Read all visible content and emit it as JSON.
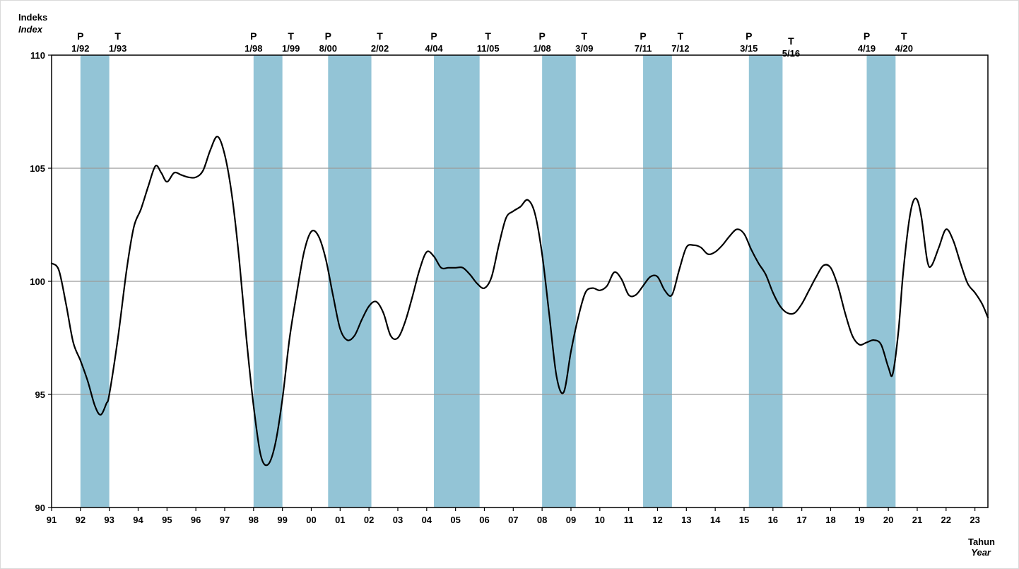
{
  "chart_data": {
    "type": "line",
    "ylabel": "Indeks",
    "ylabel_en": "Index",
    "xlabel": "Tahun",
    "xlabel_en": "Year",
    "ylim": [
      90,
      110
    ],
    "yticks": [
      90,
      95,
      100,
      105,
      110
    ],
    "grid": true,
    "x_tick_labels": [
      "91",
      "92",
      "93",
      "94",
      "95",
      "96",
      "97",
      "98",
      "99",
      "00",
      "01",
      "02",
      "03",
      "04",
      "05",
      "06",
      "07",
      "08",
      "09",
      "10",
      "11",
      "12",
      "13",
      "14",
      "15",
      "16",
      "17",
      "18",
      "19",
      "20",
      "21",
      "22",
      "23"
    ],
    "x_start_year": 1991,
    "shaded_periods": [
      {
        "peak": "1/92",
        "trough": "1/93",
        "peak_label": "P",
        "trough_label": "T"
      },
      {
        "peak": "1/98",
        "trough": "1/99",
        "peak_label": "P",
        "trough_label": "T"
      },
      {
        "peak": "8/00",
        "trough": "2/02",
        "peak_label": "P",
        "trough_label": "T"
      },
      {
        "peak": "4/04",
        "trough": "11/05",
        "peak_label": "P",
        "trough_label": "T"
      },
      {
        "peak": "1/08",
        "trough": "3/09",
        "peak_label": "P",
        "trough_label": "T"
      },
      {
        "peak": "7/11",
        "trough": "7/12",
        "peak_label": "P",
        "trough_label": "T"
      },
      {
        "peak": "3/15",
        "trough": "5/16",
        "peak_label": "P",
        "trough_label": "T"
      },
      {
        "peak": "4/19",
        "trough": "4/20",
        "peak_label": "P",
        "trough_label": "T"
      }
    ],
    "series": [
      {
        "points": [
          [
            1991.0,
            100.8
          ],
          [
            1991.25,
            100.5
          ],
          [
            1991.5,
            99.0
          ],
          [
            1991.75,
            97.3
          ],
          [
            1992.0,
            96.5
          ],
          [
            1992.25,
            95.6
          ],
          [
            1992.5,
            94.5
          ],
          [
            1992.7,
            94.1
          ],
          [
            1992.9,
            94.6
          ],
          [
            1993.0,
            95.0
          ],
          [
            1993.3,
            97.5
          ],
          [
            1993.6,
            100.5
          ],
          [
            1993.85,
            102.4
          ],
          [
            1994.1,
            103.2
          ],
          [
            1994.35,
            104.2
          ],
          [
            1994.6,
            105.1
          ],
          [
            1994.8,
            104.8
          ],
          [
            1995.0,
            104.4
          ],
          [
            1995.25,
            104.8
          ],
          [
            1995.5,
            104.7
          ],
          [
            1995.75,
            104.6
          ],
          [
            1996.0,
            104.6
          ],
          [
            1996.25,
            104.9
          ],
          [
            1996.5,
            105.8
          ],
          [
            1996.75,
            106.4
          ],
          [
            1997.0,
            105.6
          ],
          [
            1997.25,
            103.8
          ],
          [
            1997.5,
            101.0
          ],
          [
            1997.75,
            97.5
          ],
          [
            1998.0,
            94.5
          ],
          [
            1998.25,
            92.3
          ],
          [
            1998.5,
            91.9
          ],
          [
            1998.75,
            92.8
          ],
          [
            1999.0,
            94.8
          ],
          [
            1999.25,
            97.5
          ],
          [
            1999.5,
            99.5
          ],
          [
            1999.75,
            101.3
          ],
          [
            2000.0,
            102.2
          ],
          [
            2000.25,
            102.0
          ],
          [
            2000.5,
            101.0
          ],
          [
            2000.75,
            99.4
          ],
          [
            2001.0,
            97.9
          ],
          [
            2001.25,
            97.4
          ],
          [
            2001.5,
            97.6
          ],
          [
            2001.75,
            98.3
          ],
          [
            2002.0,
            98.9
          ],
          [
            2002.25,
            99.1
          ],
          [
            2002.5,
            98.6
          ],
          [
            2002.75,
            97.6
          ],
          [
            2003.0,
            97.5
          ],
          [
            2003.25,
            98.2
          ],
          [
            2003.5,
            99.3
          ],
          [
            2003.75,
            100.5
          ],
          [
            2004.0,
            101.3
          ],
          [
            2004.25,
            101.1
          ],
          [
            2004.5,
            100.6
          ],
          [
            2004.75,
            100.6
          ],
          [
            2005.0,
            100.6
          ],
          [
            2005.25,
            100.6
          ],
          [
            2005.5,
            100.3
          ],
          [
            2005.75,
            99.9
          ],
          [
            2006.0,
            99.7
          ],
          [
            2006.25,
            100.2
          ],
          [
            2006.5,
            101.6
          ],
          [
            2006.75,
            102.8
          ],
          [
            2007.0,
            103.1
          ],
          [
            2007.25,
            103.3
          ],
          [
            2007.5,
            103.6
          ],
          [
            2007.75,
            103.0
          ],
          [
            2008.0,
            101.2
          ],
          [
            2008.25,
            98.5
          ],
          [
            2008.5,
            95.8
          ],
          [
            2008.75,
            95.1
          ],
          [
            2009.0,
            96.9
          ],
          [
            2009.25,
            98.4
          ],
          [
            2009.5,
            99.5
          ],
          [
            2009.75,
            99.7
          ],
          [
            2010.0,
            99.6
          ],
          [
            2010.25,
            99.8
          ],
          [
            2010.5,
            100.4
          ],
          [
            2010.75,
            100.1
          ],
          [
            2011.0,
            99.4
          ],
          [
            2011.25,
            99.4
          ],
          [
            2011.5,
            99.8
          ],
          [
            2011.75,
            100.2
          ],
          [
            2012.0,
            100.2
          ],
          [
            2012.25,
            99.6
          ],
          [
            2012.5,
            99.4
          ],
          [
            2012.75,
            100.5
          ],
          [
            2013.0,
            101.5
          ],
          [
            2013.25,
            101.6
          ],
          [
            2013.5,
            101.5
          ],
          [
            2013.75,
            101.2
          ],
          [
            2014.0,
            101.3
          ],
          [
            2014.25,
            101.6
          ],
          [
            2014.5,
            102.0
          ],
          [
            2014.75,
            102.3
          ],
          [
            2015.0,
            102.1
          ],
          [
            2015.25,
            101.4
          ],
          [
            2015.5,
            100.8
          ],
          [
            2015.75,
            100.3
          ],
          [
            2016.0,
            99.5
          ],
          [
            2016.25,
            98.9
          ],
          [
            2016.5,
            98.6
          ],
          [
            2016.75,
            98.6
          ],
          [
            2017.0,
            99.0
          ],
          [
            2017.25,
            99.6
          ],
          [
            2017.5,
            100.2
          ],
          [
            2017.75,
            100.7
          ],
          [
            2018.0,
            100.6
          ],
          [
            2018.25,
            99.8
          ],
          [
            2018.5,
            98.6
          ],
          [
            2018.75,
            97.6
          ],
          [
            2019.0,
            97.2
          ],
          [
            2019.25,
            97.3
          ],
          [
            2019.5,
            97.4
          ],
          [
            2019.75,
            97.2
          ],
          [
            2020.0,
            96.2
          ],
          [
            2020.15,
            95.9
          ],
          [
            2020.35,
            97.8
          ],
          [
            2020.5,
            100.2
          ],
          [
            2020.7,
            102.5
          ],
          [
            2020.85,
            103.5
          ],
          [
            2021.0,
            103.6
          ],
          [
            2021.15,
            102.8
          ],
          [
            2021.35,
            100.9
          ],
          [
            2021.5,
            100.7
          ],
          [
            2021.75,
            101.5
          ],
          [
            2022.0,
            102.3
          ],
          [
            2022.25,
            101.8
          ],
          [
            2022.5,
            100.8
          ],
          [
            2022.75,
            99.9
          ],
          [
            2023.0,
            99.5
          ],
          [
            2023.25,
            99.0
          ],
          [
            2023.45,
            98.4
          ]
        ]
      }
    ]
  }
}
